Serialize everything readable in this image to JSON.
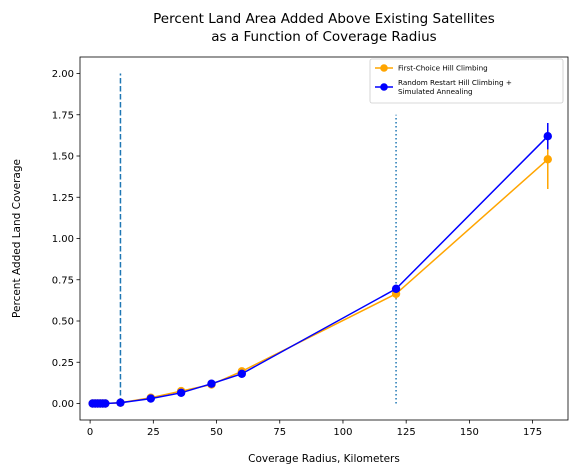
{
  "chart_data": {
    "type": "line",
    "title": [
      "Percent Land Area Added Above Existing Satellites",
      "as a Function of Coverage Radius"
    ],
    "xlabel": "Coverage Radius, Kilometers",
    "ylabel": "Percent Added Land Coverage",
    "xlim": [
      -4,
      189
    ],
    "ylim": [
      -0.1,
      2.1
    ],
    "xticks": [
      0,
      25,
      50,
      75,
      100,
      125,
      150,
      175
    ],
    "yticks": [
      0.0,
      0.25,
      0.5,
      0.75,
      1.0,
      1.25,
      1.5,
      1.75,
      2.0
    ],
    "xtick_labels": [
      "0",
      "25",
      "50",
      "75",
      "100",
      "125",
      "150",
      "175"
    ],
    "ytick_labels": [
      "0.00",
      "0.25",
      "0.50",
      "0.75",
      "1.00",
      "1.25",
      "1.50",
      "1.75",
      "2.00"
    ],
    "grid": false,
    "legend_position": "top-right",
    "series": [
      {
        "name": "First-Choice Hill Climbing",
        "color": "#ffa500",
        "x": [
          1,
          2,
          3,
          4,
          5,
          6,
          12,
          24,
          36,
          48,
          60,
          121,
          181
        ],
        "y": [
          0.0,
          0.0,
          0.0,
          0.0,
          0.0,
          0.0,
          0.005,
          0.035,
          0.075,
          0.115,
          0.195,
          0.665,
          1.48
        ],
        "yerr": [
          0,
          0,
          0,
          0,
          0,
          0,
          0.005,
          0.01,
          0.012,
          0.015,
          0.018,
          0.03,
          0.18
        ]
      },
      {
        "name": "Random Restart Hill Climbing +\nSimulated Annealing",
        "color": "#0000ff",
        "x": [
          1,
          2,
          3,
          4,
          5,
          6,
          12,
          24,
          36,
          48,
          60,
          121,
          181
        ],
        "y": [
          0.0,
          0.0,
          0.0,
          0.0,
          0.0,
          0.0,
          0.005,
          0.03,
          0.065,
          0.12,
          0.18,
          0.695,
          1.62
        ],
        "yerr": [
          0,
          0,
          0,
          0,
          0,
          0,
          0.005,
          0.01,
          0.012,
          0.015,
          0.018,
          0.025,
          0.08
        ]
      }
    ],
    "reference_lines": [
      {
        "x": 12,
        "y_range": [
          0,
          2.0
        ],
        "style": "dashed",
        "color": "#1f77b4"
      },
      {
        "x": 121,
        "y_range": [
          0,
          1.75
        ],
        "style": "dotted",
        "color": "#1f77b4"
      }
    ]
  }
}
